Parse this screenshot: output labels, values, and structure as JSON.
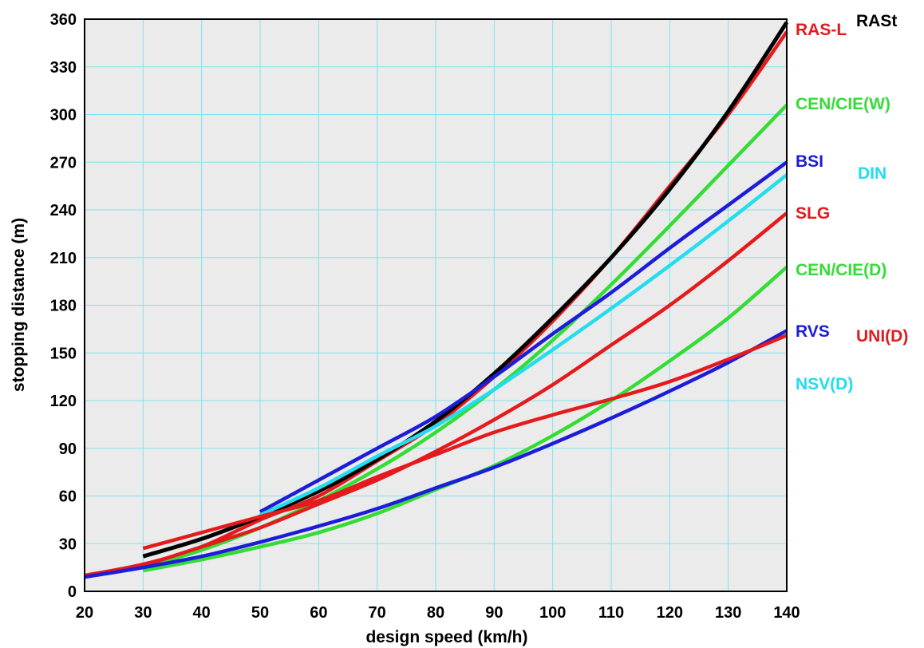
{
  "chart_data": {
    "type": "line",
    "xlabel": "design speed (km/h)",
    "ylabel": "stopping distance (m)",
    "xlim": [
      20,
      140
    ],
    "ylim": [
      0,
      360
    ],
    "xticks": [
      20,
      30,
      40,
      50,
      60,
      70,
      80,
      90,
      100,
      110,
      120,
      130,
      140
    ],
    "yticks": [
      0,
      30,
      60,
      90,
      120,
      150,
      180,
      210,
      240,
      270,
      300,
      330,
      360
    ],
    "grid": true,
    "legend": "right, labels beside line ends",
    "background_color": "#ebebeb",
    "grid_color": "#7fe3ee",
    "series": [
      {
        "name": "RAS-L",
        "color": "#e41a1c",
        "points": [
          [
            20,
            10
          ],
          [
            30,
            17
          ],
          [
            40,
            28
          ],
          [
            50,
            45
          ],
          [
            60,
            60
          ],
          [
            70,
            82
          ],
          [
            80,
            105
          ],
          [
            90,
            135
          ],
          [
            100,
            170
          ],
          [
            110,
            210
          ],
          [
            120,
            255
          ],
          [
            130,
            300
          ],
          [
            140,
            352
          ]
        ]
      },
      {
        "name": "RASt",
        "color": "#000000",
        "points": [
          [
            30,
            22
          ],
          [
            40,
            33
          ],
          [
            50,
            47
          ],
          [
            60,
            63
          ],
          [
            70,
            83
          ],
          [
            80,
            107
          ],
          [
            90,
            137
          ],
          [
            100,
            172
          ],
          [
            110,
            210
          ],
          [
            120,
            253
          ],
          [
            130,
            302
          ],
          [
            140,
            358
          ]
        ]
      },
      {
        "name": "CEN/CIE(W)",
        "color": "#33dd33",
        "points": [
          [
            30,
            15
          ],
          [
            40,
            26
          ],
          [
            50,
            40
          ],
          [
            60,
            57
          ],
          [
            70,
            77
          ],
          [
            80,
            100
          ],
          [
            90,
            127
          ],
          [
            100,
            158
          ],
          [
            110,
            193
          ],
          [
            120,
            230
          ],
          [
            130,
            268
          ],
          [
            140,
            306
          ]
        ]
      },
      {
        "name": "BSI",
        "color": "#1c1cd9",
        "points": [
          [
            50,
            50
          ],
          [
            60,
            70
          ],
          [
            70,
            90
          ],
          [
            80,
            110
          ],
          [
            90,
            135
          ],
          [
            100,
            162
          ],
          [
            110,
            188
          ],
          [
            120,
            216
          ],
          [
            130,
            243
          ],
          [
            140,
            270
          ]
        ]
      },
      {
        "name": "DIN",
        "color": "#22ddee",
        "points": [
          [
            50,
            48
          ],
          [
            60,
            65
          ],
          [
            70,
            85
          ],
          [
            80,
            104
          ],
          [
            90,
            127
          ],
          [
            100,
            152
          ],
          [
            110,
            178
          ],
          [
            120,
            205
          ],
          [
            130,
            233
          ],
          [
            140,
            262
          ]
        ]
      },
      {
        "name": "SLG",
        "color": "#e41a1c",
        "points": [
          [
            30,
            16
          ],
          [
            40,
            28
          ],
          [
            50,
            40
          ],
          [
            60,
            55
          ],
          [
            70,
            70
          ],
          [
            80,
            88
          ],
          [
            90,
            108
          ],
          [
            100,
            130
          ],
          [
            110,
            155
          ],
          [
            120,
            180
          ],
          [
            130,
            208
          ],
          [
            140,
            238
          ]
        ]
      },
      {
        "name": "CEN/CIE(D)",
        "color": "#33dd33",
        "points": [
          [
            30,
            13
          ],
          [
            40,
            20
          ],
          [
            50,
            28
          ],
          [
            60,
            37
          ],
          [
            70,
            49
          ],
          [
            80,
            64
          ],
          [
            90,
            79
          ],
          [
            100,
            98
          ],
          [
            110,
            120
          ],
          [
            120,
            145
          ],
          [
            130,
            172
          ],
          [
            140,
            204
          ]
        ]
      },
      {
        "name": "RVS",
        "color": "#1c1cd9",
        "points": [
          [
            20,
            9
          ],
          [
            30,
            15
          ],
          [
            40,
            22
          ],
          [
            50,
            31
          ],
          [
            60,
            41
          ],
          [
            70,
            52
          ],
          [
            80,
            65
          ],
          [
            90,
            78
          ],
          [
            100,
            93
          ],
          [
            110,
            109
          ],
          [
            120,
            126
          ],
          [
            130,
            144
          ],
          [
            140,
            164
          ]
        ]
      },
      {
        "name": "UNI(D)",
        "color": "#e41a1c",
        "points": [
          [
            30,
            27
          ],
          [
            40,
            37
          ],
          [
            50,
            47
          ],
          [
            60,
            57
          ],
          [
            70,
            72
          ],
          [
            80,
            86
          ],
          [
            90,
            100
          ],
          [
            100,
            111
          ],
          [
            110,
            121
          ],
          [
            120,
            132
          ],
          [
            130,
            146
          ],
          [
            140,
            161
          ]
        ]
      },
      {
        "name": "NSV(D)",
        "color": "#22ddee",
        "points": []
      }
    ],
    "labels": [
      {
        "text": "RAS-L",
        "color": "#e41a1c"
      },
      {
        "text": "RASt",
        "color": "#000000"
      },
      {
        "text": "CEN/CIE(W)",
        "color": "#33dd33"
      },
      {
        "text": "BSI",
        "color": "#1c1cd9"
      },
      {
        "text": "DIN",
        "color": "#22ddee"
      },
      {
        "text": "SLG",
        "color": "#e41a1c"
      },
      {
        "text": "CEN/CIE(D)",
        "color": "#33dd33"
      },
      {
        "text": "RVS",
        "color": "#1c1cd9"
      },
      {
        "text": "UNI(D)",
        "color": "#e41a1c"
      },
      {
        "text": "NSV(D)",
        "color": "#22ddee"
      }
    ]
  }
}
